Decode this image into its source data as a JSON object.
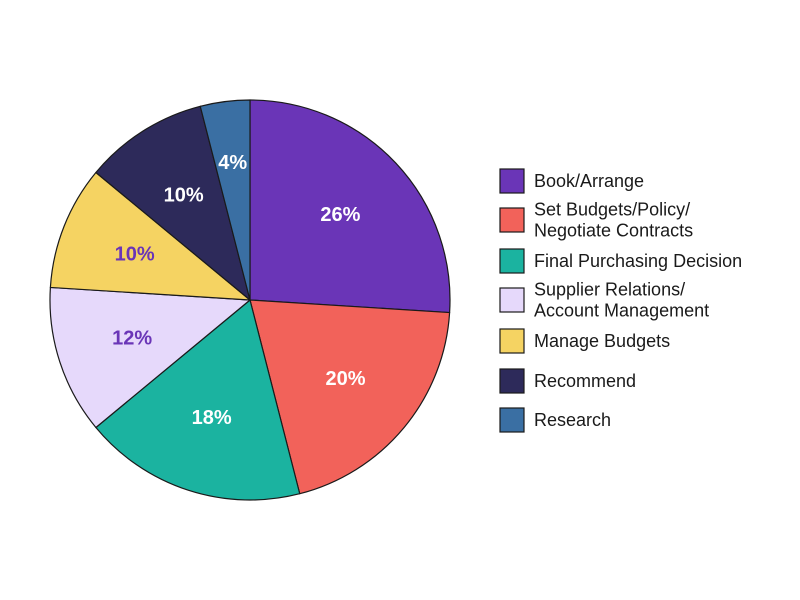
{
  "chart_data": {
    "type": "pie",
    "title": "",
    "categories": [
      "Book/Arrange",
      "Set Budgets/Policy/ Negotiate Contracts",
      "Final Purchasing Decision",
      "Supplier Relations/ Account Management",
      "Manage Budgets",
      "Recommend",
      "Research"
    ],
    "values": [
      26,
      20,
      18,
      12,
      10,
      10,
      4
    ],
    "labels": [
      "26%",
      "20%",
      "18%",
      "12%",
      "10%",
      "10%",
      "4%"
    ],
    "colors": [
      "#6a35b7",
      "#f2625a",
      "#1bb3a0",
      "#e6d9fb",
      "#f5d362",
      "#2d2a5a",
      "#3a6fa3"
    ],
    "label_colors": [
      "#ffffff",
      "#ffffff",
      "#ffffff",
      "#6a35b7",
      "#6a35b7",
      "#ffffff",
      "#ffffff"
    ],
    "legend": [
      {
        "lines": [
          "Book/Arrange"
        ]
      },
      {
        "lines": [
          "Set Budgets/Policy/",
          "Negotiate Contracts"
        ]
      },
      {
        "lines": [
          "Final Purchasing Decision"
        ]
      },
      {
        "lines": [
          "Supplier Relations/",
          "Account Management"
        ]
      },
      {
        "lines": [
          "Manage Budgets"
        ]
      },
      {
        "lines": [
          "Recommend"
        ]
      },
      {
        "lines": [
          "Research"
        ]
      }
    ],
    "legend_placement": "right",
    "start_angle": "top",
    "direction": "clockwise"
  }
}
